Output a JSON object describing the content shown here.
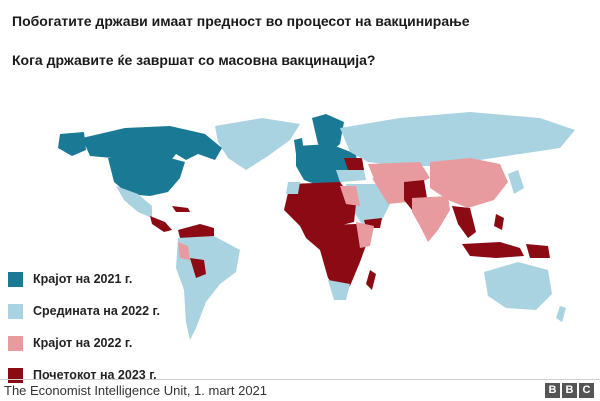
{
  "header": {
    "title": "Побогатите држави имаат предност во процесот на вакцинирање",
    "subtitle": "Кога државите ќе завршат со масовна вакцинација?"
  },
  "legend": [
    {
      "label": "Крајот на 2021 г.",
      "color": "#1a7a96"
    },
    {
      "label": "Средината на 2022 г.",
      "color": "#a9d3e0"
    },
    {
      "label": "Крајот на 2022 г.",
      "color": "#e89b9e"
    },
    {
      "label": "Почетокот на 2023 г.",
      "color": "#8b0a14"
    }
  ],
  "colors": {
    "ocean": "#ffffff",
    "no_data": "#cfcfcf"
  },
  "source": "The Economist Intelligence Unit, 1. mart 2021",
  "logo": {
    "letters": [
      "B",
      "B",
      "C"
    ]
  }
}
